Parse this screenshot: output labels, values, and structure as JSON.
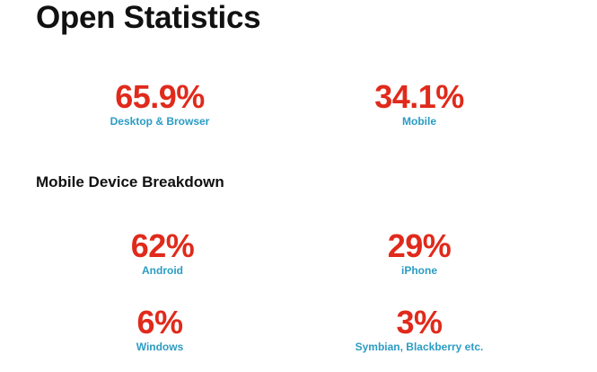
{
  "title": "Open Statistics",
  "overview": [
    {
      "value": "65.9%",
      "label": "Desktop & Browser"
    },
    {
      "value": "34.1%",
      "label": "Mobile"
    }
  ],
  "section_heading": "Mobile Device Breakdown",
  "devices": [
    {
      "value": "62%",
      "label": "Android"
    },
    {
      "value": "29%",
      "label": "iPhone"
    },
    {
      "value": "6%",
      "label": "Windows"
    },
    {
      "value": "3%",
      "label": "Symbian, Blackberry etc."
    }
  ],
  "colors": {
    "value": "#e02a1b",
    "label": "#2b9cc4",
    "heading": "#111111"
  }
}
